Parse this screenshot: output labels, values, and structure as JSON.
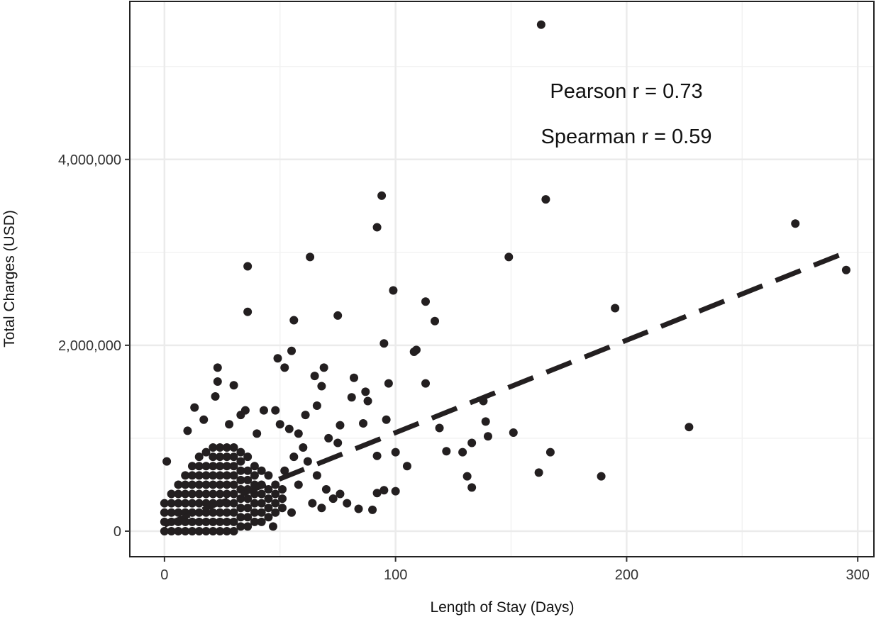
{
  "chart_data": {
    "type": "scatter",
    "title": "",
    "xlabel": "Length of Stay (Days)",
    "ylabel": "Total Charges (USD)",
    "xlim": [
      -15,
      307
    ],
    "ylim": [
      -275000,
      5700000
    ],
    "x_ticks": [
      0,
      100,
      200,
      300
    ],
    "x_tick_labels": [
      "0",
      "100",
      "200",
      "300"
    ],
    "y_ticks": [
      0,
      2000000,
      4000000
    ],
    "y_tick_labels": [
      "0",
      "2,000,000",
      "4,000,000"
    ],
    "grid": true,
    "point_color": "#231f20",
    "annotations": [
      "Pearson r =  0.73",
      "Spearman r =  0.59"
    ],
    "trend_line": {
      "style": "dashed",
      "color": "#231f20",
      "intercept": 65000,
      "slope": 9950,
      "x_range": [
        0,
        295
      ]
    },
    "points": [
      [
        163,
        5450000
      ],
      [
        94,
        3610000
      ],
      [
        92,
        3270000
      ],
      [
        165,
        3570000
      ],
      [
        273,
        3310000
      ],
      [
        295,
        2810000
      ],
      [
        149,
        2950000
      ],
      [
        63,
        2950000
      ],
      [
        36,
        2850000
      ],
      [
        36,
        2360000
      ],
      [
        99,
        2590000
      ],
      [
        113,
        2470000
      ],
      [
        117,
        2260000
      ],
      [
        195,
        2400000
      ],
      [
        75,
        2320000
      ],
      [
        56,
        2270000
      ],
      [
        95,
        2020000
      ],
      [
        109,
        1950000
      ],
      [
        108,
        1930000
      ],
      [
        113,
        1590000
      ],
      [
        97,
        1590000
      ],
      [
        151,
        1060000
      ],
      [
        227,
        1120000
      ],
      [
        119,
        1110000
      ],
      [
        122,
        860000
      ],
      [
        129,
        850000
      ],
      [
        133,
        950000
      ],
      [
        138,
        1400000
      ],
      [
        139,
        1180000
      ],
      [
        140,
        1020000
      ],
      [
        167,
        850000
      ],
      [
        162,
        630000
      ],
      [
        189,
        590000
      ],
      [
        131,
        590000
      ],
      [
        133,
        470000
      ],
      [
        105,
        700000
      ],
      [
        100,
        850000
      ],
      [
        100,
        430000
      ],
      [
        95,
        440000
      ],
      [
        92,
        410000
      ],
      [
        90,
        230000
      ],
      [
        84,
        240000
      ],
      [
        82,
        1650000
      ],
      [
        87,
        1500000
      ],
      [
        88,
        1400000
      ],
      [
        86,
        1160000
      ],
      [
        96,
        1200000
      ],
      [
        92,
        810000
      ],
      [
        81,
        1440000
      ],
      [
        76,
        1140000
      ],
      [
        68,
        1560000
      ],
      [
        69,
        1760000
      ],
      [
        65,
        1670000
      ],
      [
        55,
        1940000
      ],
      [
        49,
        1860000
      ],
      [
        52,
        1760000
      ],
      [
        23,
        1760000
      ],
      [
        23,
        1610000
      ],
      [
        30,
        1570000
      ],
      [
        1,
        750000
      ],
      [
        10,
        1080000
      ],
      [
        13,
        1330000
      ],
      [
        17,
        1200000
      ],
      [
        22,
        1450000
      ],
      [
        28,
        1150000
      ],
      [
        33,
        1250000
      ],
      [
        35,
        1300000
      ],
      [
        40,
        1050000
      ],
      [
        43,
        1300000
      ],
      [
        48,
        1300000
      ],
      [
        50,
        1150000
      ],
      [
        54,
        1100000
      ],
      [
        58,
        1050000
      ],
      [
        60,
        900000
      ],
      [
        62,
        750000
      ],
      [
        66,
        600000
      ],
      [
        70,
        450000
      ],
      [
        73,
        350000
      ],
      [
        76,
        400000
      ],
      [
        79,
        300000
      ],
      [
        58,
        500000
      ],
      [
        64,
        300000
      ],
      [
        47,
        50000
      ],
      [
        55,
        200000
      ],
      [
        68,
        250000
      ],
      [
        61,
        1250000
      ],
      [
        66,
        1350000
      ],
      [
        75,
        950000
      ],
      [
        71,
        1000000
      ],
      [
        52,
        650000
      ],
      [
        56,
        800000
      ],
      [
        0,
        0
      ],
      [
        0,
        100000
      ],
      [
        0,
        200000
      ],
      [
        0,
        300000
      ],
      [
        3,
        0
      ],
      [
        3,
        100000
      ],
      [
        3,
        200000
      ],
      [
        3,
        300000
      ],
      [
        3,
        400000
      ],
      [
        6,
        0
      ],
      [
        6,
        100000
      ],
      [
        6,
        200000
      ],
      [
        6,
        300000
      ],
      [
        6,
        400000
      ],
      [
        6,
        500000
      ],
      [
        9,
        0
      ],
      [
        9,
        100000
      ],
      [
        9,
        200000
      ],
      [
        9,
        300000
      ],
      [
        9,
        400000
      ],
      [
        9,
        500000
      ],
      [
        9,
        600000
      ],
      [
        12,
        0
      ],
      [
        12,
        100000
      ],
      [
        12,
        200000
      ],
      [
        12,
        300000
      ],
      [
        12,
        400000
      ],
      [
        12,
        500000
      ],
      [
        12,
        600000
      ],
      [
        12,
        700000
      ],
      [
        15,
        0
      ],
      [
        15,
        100000
      ],
      [
        15,
        200000
      ],
      [
        15,
        300000
      ],
      [
        15,
        400000
      ],
      [
        15,
        500000
      ],
      [
        15,
        600000
      ],
      [
        15,
        700000
      ],
      [
        15,
        800000
      ],
      [
        18,
        0
      ],
      [
        18,
        100000
      ],
      [
        18,
        200000
      ],
      [
        18,
        300000
      ],
      [
        18,
        400000
      ],
      [
        18,
        500000
      ],
      [
        18,
        600000
      ],
      [
        18,
        700000
      ],
      [
        18,
        850000
      ],
      [
        21,
        0
      ],
      [
        21,
        100000
      ],
      [
        21,
        200000
      ],
      [
        21,
        300000
      ],
      [
        21,
        400000
      ],
      [
        21,
        500000
      ],
      [
        21,
        600000
      ],
      [
        21,
        700000
      ],
      [
        21,
        800000
      ],
      [
        21,
        900000
      ],
      [
        24,
        0
      ],
      [
        24,
        100000
      ],
      [
        24,
        200000
      ],
      [
        24,
        300000
      ],
      [
        24,
        400000
      ],
      [
        24,
        500000
      ],
      [
        24,
        600000
      ],
      [
        24,
        700000
      ],
      [
        24,
        800000
      ],
      [
        24,
        900000
      ],
      [
        27,
        0
      ],
      [
        27,
        100000
      ],
      [
        27,
        200000
      ],
      [
        27,
        300000
      ],
      [
        27,
        400000
      ],
      [
        27,
        500000
      ],
      [
        27,
        600000
      ],
      [
        27,
        700000
      ],
      [
        27,
        800000
      ],
      [
        27,
        900000
      ],
      [
        30,
        0
      ],
      [
        30,
        100000
      ],
      [
        30,
        200000
      ],
      [
        30,
        300000
      ],
      [
        30,
        400000
      ],
      [
        30,
        500000
      ],
      [
        30,
        600000
      ],
      [
        30,
        700000
      ],
      [
        30,
        800000
      ],
      [
        30,
        900000
      ],
      [
        33,
        50000
      ],
      [
        33,
        150000
      ],
      [
        33,
        250000
      ],
      [
        33,
        350000
      ],
      [
        33,
        450000
      ],
      [
        33,
        550000
      ],
      [
        33,
        650000
      ],
      [
        33,
        750000
      ],
      [
        33,
        850000
      ],
      [
        36,
        50000
      ],
      [
        36,
        150000
      ],
      [
        36,
        250000
      ],
      [
        36,
        350000
      ],
      [
        36,
        450000
      ],
      [
        36,
        550000
      ],
      [
        36,
        650000
      ],
      [
        36,
        800000
      ],
      [
        39,
        100000
      ],
      [
        39,
        200000
      ],
      [
        39,
        300000
      ],
      [
        39,
        400000
      ],
      [
        39,
        500000
      ],
      [
        39,
        600000
      ],
      [
        39,
        700000
      ],
      [
        42,
        100000
      ],
      [
        42,
        200000
      ],
      [
        42,
        300000
      ],
      [
        42,
        400000
      ],
      [
        42,
        500000
      ],
      [
        42,
        650000
      ],
      [
        45,
        150000
      ],
      [
        45,
        250000
      ],
      [
        45,
        350000
      ],
      [
        45,
        450000
      ],
      [
        45,
        600000
      ],
      [
        48,
        200000
      ],
      [
        48,
        300000
      ],
      [
        48,
        400000
      ],
      [
        48,
        500000
      ],
      [
        51,
        250000
      ],
      [
        51,
        350000
      ],
      [
        51,
        450000
      ]
    ]
  }
}
